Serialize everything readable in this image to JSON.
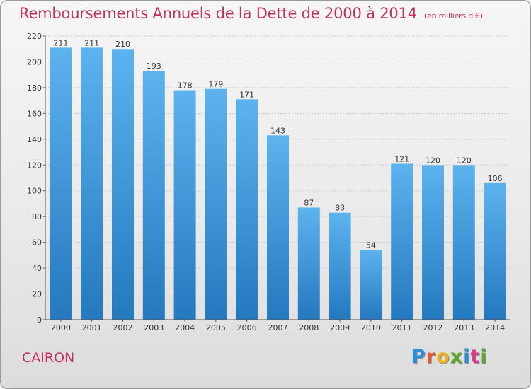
{
  "header": {
    "title": "Remboursements Annuels de la Dette de 2000 à 2014",
    "unit": "(en milliers d'€)"
  },
  "footer": {
    "commune": "CAIRON",
    "logo_letters": [
      "P",
      "r",
      "o",
      "x",
      "i",
      "t",
      "i"
    ],
    "logo_colors": [
      "#2b8fd6",
      "#e2582a",
      "#f0b21c",
      "#5aa832",
      "#2b8fd6",
      "#d63a8a",
      "#5aa832"
    ]
  },
  "colors": {
    "title": "#c0335a",
    "bar_top": "#5cb3ee",
    "bar_bottom": "#2479bf"
  },
  "chart_data": {
    "type": "bar",
    "title": "Remboursements Annuels de la Dette de 2000 à 2014",
    "xlabel": "",
    "ylabel": "",
    "ylim": [
      0,
      220
    ],
    "yticks": [
      0,
      20,
      40,
      60,
      80,
      100,
      120,
      140,
      160,
      180,
      200,
      220
    ],
    "grid": true,
    "categories": [
      "2000",
      "2001",
      "2002",
      "2003",
      "2004",
      "2005",
      "2006",
      "2007",
      "2008",
      "2009",
      "2010",
      "2011",
      "2012",
      "2013",
      "2014"
    ],
    "values": [
      211,
      211,
      210,
      193,
      178,
      179,
      171,
      143,
      87,
      83,
      54,
      121,
      120,
      120,
      106
    ]
  }
}
